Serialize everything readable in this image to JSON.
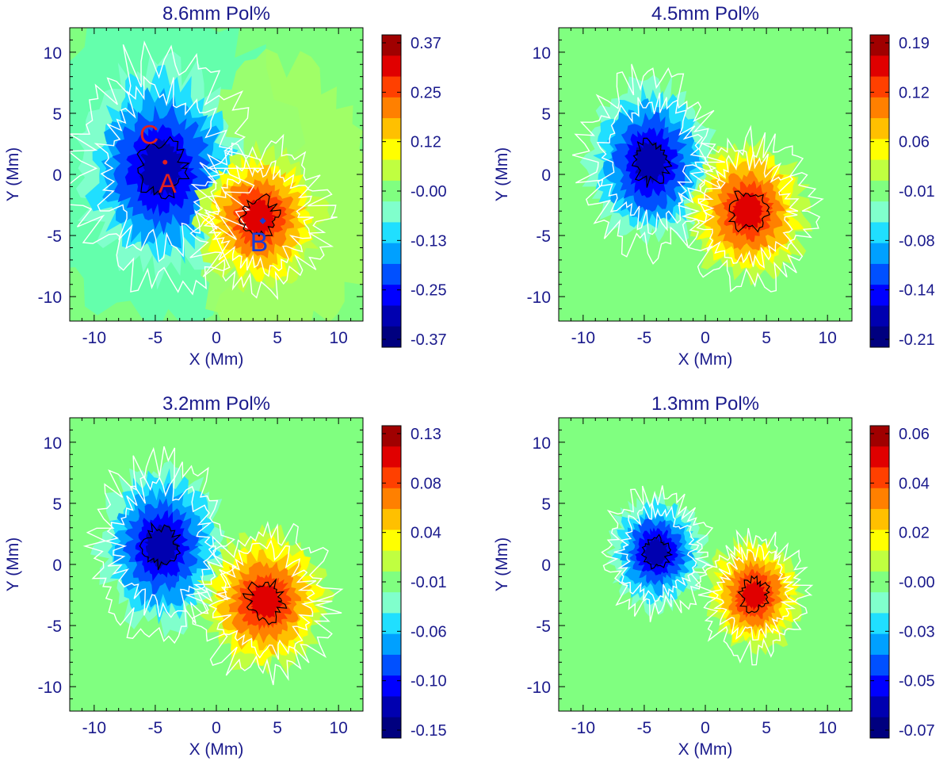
{
  "colors": {
    "axis_text": "#1a1a8c",
    "title_text": "#1a1a8c",
    "background_field": "#80ff80",
    "contour_white": "#ffffff",
    "contour_black": "#000000",
    "label_red": "#e02020",
    "label_blue": "#1a3cd6",
    "colormap": [
      "#00007f",
      "#0000b0",
      "#0000ff",
      "#0050ff",
      "#00a0ff",
      "#20dfff",
      "#80ffcc",
      "#80ff80",
      "#c0ff40",
      "#ffff00",
      "#ffc000",
      "#ff8000",
      "#ff4000",
      "#e00000",
      "#a00000"
    ]
  },
  "chart_data": [
    {
      "type": "heatmap",
      "title": "8.6mm Pol%",
      "xlabel": "X (Mm)",
      "ylabel": "Y (Mm)",
      "xlim": [
        -12,
        12
      ],
      "ylim": [
        -12,
        12
      ],
      "xticks": [
        "-10",
        "-5",
        "0",
        "5",
        "10"
      ],
      "yticks": [
        "10",
        "5",
        "0",
        "-5",
        "-10"
      ],
      "colorbar_ticks": [
        "0.37",
        "0.25",
        "0.12",
        "-0.00",
        "-0.13",
        "-0.25",
        "-0.37"
      ],
      "colorbar_range": [
        -0.37,
        0.37
      ],
      "negative_blob": {
        "x": -4.5,
        "y": 0.5,
        "rx": 6.5,
        "ry": 8.5,
        "peak": -0.3
      },
      "positive_blob": {
        "x": 3.5,
        "y": -3.5,
        "rx": 5.0,
        "ry": 5.5,
        "peak": 0.3
      },
      "annotations": [
        {
          "text": "C",
          "x": -5.5,
          "y": 2.5,
          "color": "red"
        },
        {
          "text": "A",
          "x": -4.0,
          "y": -1.5,
          "color": "red"
        },
        {
          "text": "B",
          "x": 3.5,
          "y": -6.3,
          "color": "blue"
        }
      ]
    },
    {
      "type": "heatmap",
      "title": "4.5mm Pol%",
      "xlabel": "X (Mm)",
      "ylabel": "Y (Mm)",
      "xlim": [
        -12,
        12
      ],
      "ylim": [
        -12,
        12
      ],
      "xticks": [
        "-10",
        "-5",
        "0",
        "5",
        "10"
      ],
      "yticks": [
        "10",
        "5",
        "0",
        "-5",
        "-10"
      ],
      "colorbar_ticks": [
        "0.19",
        "0.12",
        "0.06",
        "-0.01",
        "-0.08",
        "-0.14",
        "-0.21"
      ],
      "colorbar_range": [
        -0.21,
        0.19
      ],
      "negative_blob": {
        "x": -4.5,
        "y": 1.0,
        "rx": 5.0,
        "ry": 6.5,
        "peak": -0.17
      },
      "positive_blob": {
        "x": 3.5,
        "y": -3.0,
        "rx": 4.8,
        "ry": 5.5,
        "peak": 0.15
      },
      "annotations": []
    },
    {
      "type": "heatmap",
      "title": "3.2mm Pol%",
      "xlabel": "X (Mm)",
      "ylabel": "Y (Mm)",
      "xlim": [
        -12,
        12
      ],
      "ylim": [
        -12,
        12
      ],
      "xticks": [
        "-10",
        "-5",
        "0",
        "5",
        "10"
      ],
      "yticks": [
        "10",
        "5",
        "0",
        "-5",
        "-10"
      ],
      "colorbar_ticks": [
        "0.13",
        "0.08",
        "0.04",
        "-0.01",
        "-0.06",
        "-0.10",
        "-0.15"
      ],
      "colorbar_range": [
        -0.15,
        0.13
      ],
      "negative_blob": {
        "x": -4.5,
        "y": 1.5,
        "rx": 5.0,
        "ry": 6.5,
        "peak": -0.12
      },
      "positive_blob": {
        "x": 4.0,
        "y": -3.0,
        "rx": 5.0,
        "ry": 5.5,
        "peak": 0.1
      },
      "annotations": []
    },
    {
      "type": "heatmap",
      "title": "1.3mm Pol%",
      "xlabel": "X (Mm)",
      "ylabel": "Y (Mm)",
      "xlim": [
        -12,
        12
      ],
      "ylim": [
        -12,
        12
      ],
      "xticks": [
        "-10",
        "-5",
        "0",
        "5",
        "10"
      ],
      "yticks": [
        "10",
        "5",
        "0",
        "-5",
        "-10"
      ],
      "colorbar_ticks": [
        "0.06",
        "0.04",
        "0.02",
        "-0.00",
        "-0.03",
        "-0.05",
        "-0.07"
      ],
      "colorbar_range": [
        -0.07,
        0.06
      ],
      "negative_blob": {
        "x": -4.0,
        "y": 1.0,
        "rx": 3.8,
        "ry": 4.5,
        "peak": -0.06
      },
      "positive_blob": {
        "x": 4.0,
        "y": -2.5,
        "rx": 3.8,
        "ry": 4.5,
        "peak": 0.05
      },
      "annotations": []
    }
  ]
}
